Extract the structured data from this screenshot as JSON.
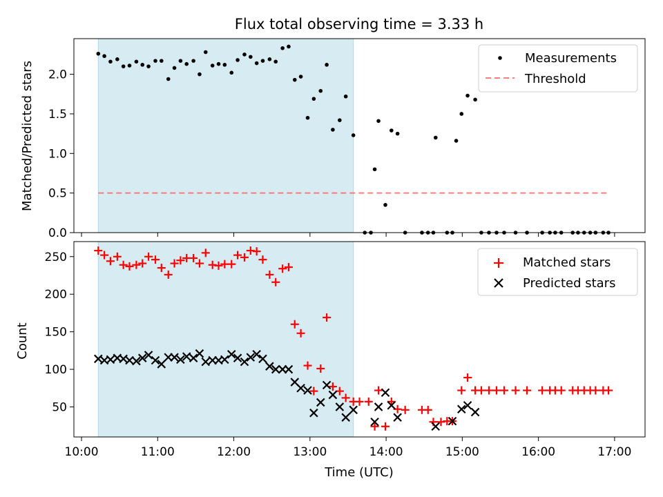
{
  "title": "Flux total observing time = 3.33 h",
  "colors": {
    "span": "#add8e6",
    "measure": "#000000",
    "threshold": "#ff6666",
    "matched": "#ff0000",
    "predicted": "#000000"
  },
  "chart_data": [
    {
      "type": "scatter",
      "panel": "top",
      "ylabel": "Matched/Predicted stars",
      "ylim": [
        0,
        2.45
      ],
      "yticks": [
        "0.0",
        "0.5",
        "1.0",
        "1.5",
        "2.0"
      ],
      "legend": {
        "placement": "top-right",
        "entries": [
          "Measurements",
          "Threshold"
        ]
      },
      "shaded_span_hours": [
        10.22,
        13.57
      ],
      "threshold": {
        "name": "Threshold",
        "y": 0.5,
        "x_range_hours": [
          10.22,
          16.92
        ]
      },
      "series": [
        {
          "name": "Measurements",
          "points": [
            [
              10.22,
              2.26
            ],
            [
              10.3,
              2.23
            ],
            [
              10.38,
              2.16
            ],
            [
              10.47,
              2.19
            ],
            [
              10.55,
              2.1
            ],
            [
              10.63,
              2.11
            ],
            [
              10.72,
              2.16
            ],
            [
              10.8,
              2.12
            ],
            [
              10.88,
              2.1
            ],
            [
              10.97,
              2.17
            ],
            [
              11.05,
              2.17
            ],
            [
              11.14,
              1.94
            ],
            [
              11.22,
              2.08
            ],
            [
              11.3,
              2.17
            ],
            [
              11.38,
              2.13
            ],
            [
              11.47,
              2.17
            ],
            [
              11.55,
              2.0
            ],
            [
              11.63,
              2.28
            ],
            [
              11.72,
              2.11
            ],
            [
              11.8,
              2.13
            ],
            [
              11.88,
              2.12
            ],
            [
              11.97,
              2.02
            ],
            [
              12.05,
              2.18
            ],
            [
              12.14,
              2.25
            ],
            [
              12.22,
              2.22
            ],
            [
              12.3,
              2.14
            ],
            [
              12.38,
              2.17
            ],
            [
              12.47,
              2.19
            ],
            [
              12.55,
              2.16
            ],
            [
              12.64,
              2.33
            ],
            [
              12.72,
              2.35
            ],
            [
              12.8,
              1.93
            ],
            [
              12.88,
              1.97
            ],
            [
              12.97,
              1.45
            ],
            [
              13.05,
              1.69
            ],
            [
              13.14,
              1.79
            ],
            [
              13.22,
              2.12
            ],
            [
              13.3,
              1.3
            ],
            [
              13.39,
              1.42
            ],
            [
              13.47,
              1.72
            ],
            [
              13.57,
              1.23
            ],
            [
              13.72,
              0.0
            ],
            [
              13.8,
              0.0
            ],
            [
              13.85,
              0.8
            ],
            [
              13.9,
              1.41
            ],
            [
              13.99,
              0.35
            ],
            [
              14.07,
              1.29
            ],
            [
              14.15,
              1.25
            ],
            [
              14.25,
              0.0
            ],
            [
              14.47,
              0.0
            ],
            [
              14.55,
              0.0
            ],
            [
              14.62,
              0.0
            ],
            [
              14.65,
              1.2
            ],
            [
              14.8,
              0.0
            ],
            [
              14.87,
              0.0
            ],
            [
              14.92,
              1.16
            ],
            [
              14.99,
              1.5
            ],
            [
              15.07,
              1.73
            ],
            [
              15.17,
              1.68
            ],
            [
              15.25,
              0.0
            ],
            [
              15.35,
              0.0
            ],
            [
              15.45,
              0.0
            ],
            [
              15.55,
              0.0
            ],
            [
              15.7,
              0.0
            ],
            [
              15.85,
              0.0
            ],
            [
              16.05,
              0.0
            ],
            [
              16.15,
              0.0
            ],
            [
              16.22,
              0.0
            ],
            [
              16.3,
              0.0
            ],
            [
              16.45,
              0.0
            ],
            [
              16.52,
              0.0
            ],
            [
              16.6,
              0.0
            ],
            [
              16.68,
              0.0
            ],
            [
              16.75,
              0.0
            ],
            [
              16.85,
              0.0
            ],
            [
              16.92,
              0.0
            ]
          ]
        }
      ]
    },
    {
      "type": "scatter",
      "panel": "bottom",
      "xlabel": "Time (UTC)",
      "ylabel": "Count",
      "xlim_hours": [
        9.9,
        17.4
      ],
      "xticks": [
        "10:00",
        "11:00",
        "12:00",
        "13:00",
        "14:00",
        "15:00",
        "16:00",
        "17:00"
      ],
      "ylim": [
        10,
        270
      ],
      "yticks": [
        "50",
        "100",
        "150",
        "200",
        "250"
      ],
      "legend": {
        "placement": "top-right",
        "entries": [
          "Matched stars",
          "Predicted stars"
        ]
      },
      "shaded_span_hours": [
        10.22,
        13.57
      ],
      "series": [
        {
          "name": "Matched stars",
          "marker": "plus",
          "points": [
            [
              10.22,
              258
            ],
            [
              10.3,
              252
            ],
            [
              10.38,
              244
            ],
            [
              10.47,
              250
            ],
            [
              10.55,
              239
            ],
            [
              10.63,
              237
            ],
            [
              10.72,
              239
            ],
            [
              10.8,
              241
            ],
            [
              10.88,
              250
            ],
            [
              10.97,
              246
            ],
            [
              11.05,
              235
            ],
            [
              11.14,
              226
            ],
            [
              11.22,
              241
            ],
            [
              11.3,
              245
            ],
            [
              11.38,
              248
            ],
            [
              11.47,
              248
            ],
            [
              11.55,
              241
            ],
            [
              11.63,
              255
            ],
            [
              11.72,
              239
            ],
            [
              11.8,
              238
            ],
            [
              11.88,
              240
            ],
            [
              11.97,
              240
            ],
            [
              12.05,
              252
            ],
            [
              12.14,
              249
            ],
            [
              12.22,
              258
            ],
            [
              12.3,
              257
            ],
            [
              12.38,
              246
            ],
            [
              12.47,
              226
            ],
            [
              12.55,
              216
            ],
            [
              12.64,
              234
            ],
            [
              12.72,
              236
            ],
            [
              12.8,
              160
            ],
            [
              12.88,
              148
            ],
            [
              12.97,
              105
            ],
            [
              13.05,
              71
            ],
            [
              13.14,
              101
            ],
            [
              13.22,
              169
            ],
            [
              13.3,
              77
            ],
            [
              13.39,
              71
            ],
            [
              13.47,
              62
            ],
            [
              13.57,
              57
            ],
            [
              13.65,
              57
            ],
            [
              13.77,
              57
            ],
            [
              13.85,
              24
            ],
            [
              13.9,
              72
            ],
            [
              13.99,
              24
            ],
            [
              14.07,
              57
            ],
            [
              14.15,
              47
            ],
            [
              14.25,
              46
            ],
            [
              14.47,
              46
            ],
            [
              14.55,
              46
            ],
            [
              14.62,
              30
            ],
            [
              14.72,
              30
            ],
            [
              14.8,
              31
            ],
            [
              14.87,
              31
            ],
            [
              14.99,
              72
            ],
            [
              15.07,
              89
            ],
            [
              15.17,
              72
            ],
            [
              15.25,
              72
            ],
            [
              15.35,
              72
            ],
            [
              15.45,
              72
            ],
            [
              15.55,
              72
            ],
            [
              15.7,
              72
            ],
            [
              15.85,
              72
            ],
            [
              16.05,
              72
            ],
            [
              16.15,
              72
            ],
            [
              16.22,
              72
            ],
            [
              16.3,
              72
            ],
            [
              16.45,
              72
            ],
            [
              16.52,
              72
            ],
            [
              16.6,
              72
            ],
            [
              16.68,
              72
            ],
            [
              16.75,
              72
            ],
            [
              16.85,
              72
            ],
            [
              16.92,
              72
            ]
          ]
        },
        {
          "name": "Predicted stars",
          "marker": "x",
          "points": [
            [
              10.22,
              114
            ],
            [
              10.3,
              112
            ],
            [
              10.38,
              113
            ],
            [
              10.47,
              115
            ],
            [
              10.55,
              114
            ],
            [
              10.63,
              112
            ],
            [
              10.72,
              111
            ],
            [
              10.8,
              115
            ],
            [
              10.88,
              119
            ],
            [
              10.97,
              112
            ],
            [
              11.05,
              107
            ],
            [
              11.14,
              116
            ],
            [
              11.22,
              116
            ],
            [
              11.3,
              113
            ],
            [
              11.38,
              117
            ],
            [
              11.47,
              115
            ],
            [
              11.55,
              121
            ],
            [
              11.63,
              110
            ],
            [
              11.72,
              112
            ],
            [
              11.8,
              112
            ],
            [
              11.88,
              113
            ],
            [
              11.97,
              120
            ],
            [
              12.05,
              115
            ],
            [
              12.14,
              110
            ],
            [
              12.22,
              116
            ],
            [
              12.3,
              120
            ],
            [
              12.38,
              114
            ],
            [
              12.47,
              104
            ],
            [
              12.55,
              100
            ],
            [
              12.64,
              100
            ],
            [
              12.72,
              100
            ],
            [
              12.8,
              83
            ],
            [
              12.88,
              75
            ],
            [
              12.97,
              72
            ],
            [
              13.05,
              42
            ],
            [
              13.14,
              56
            ],
            [
              13.22,
              79
            ],
            [
              13.3,
              66
            ],
            [
              13.39,
              50
            ],
            [
              13.47,
              36
            ],
            [
              13.57,
              46
            ],
            [
              13.85,
              30
            ],
            [
              13.9,
              50
            ],
            [
              13.99,
              69
            ],
            [
              14.07,
              52
            ],
            [
              14.15,
              36
            ],
            [
              14.65,
              24
            ],
            [
              14.87,
              31
            ],
            [
              14.99,
              47
            ],
            [
              15.07,
              52
            ],
            [
              15.17,
              43
            ]
          ]
        }
      ]
    }
  ]
}
